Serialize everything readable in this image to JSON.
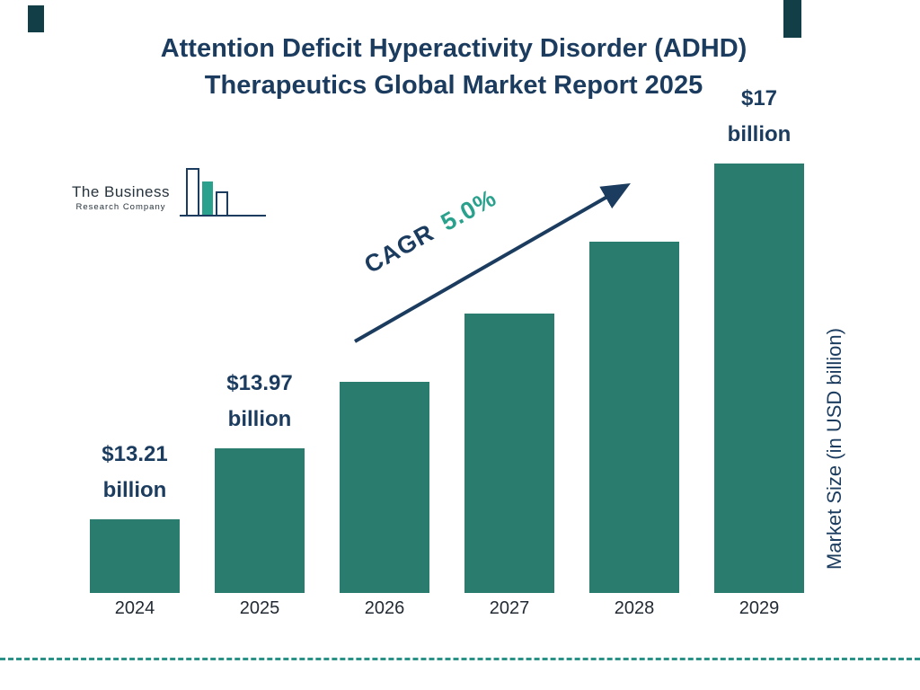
{
  "title": {
    "line1": "Attention Deficit Hyperactivity Disorder (ADHD)",
    "line2": "Therapeutics Global Market Report 2025"
  },
  "logo": {
    "name_line1": "The Business",
    "name_line2": "Research Company"
  },
  "chart_data": {
    "type": "bar",
    "title": "Attention Deficit Hyperactivity Disorder (ADHD) Therapeutics Global Market Report 2025",
    "categories": [
      "2024",
      "2025",
      "2026",
      "2027",
      "2028",
      "2029"
    ],
    "values": [
      13.21,
      13.97,
      14.67,
      15.4,
      16.17,
      17.0
    ],
    "unit": "USD billion",
    "xlabel": "",
    "ylabel": "Market Size (in USD billion)",
    "ylim": [
      12.4,
      17.2
    ],
    "grid": false,
    "legend": false,
    "value_labels": [
      {
        "index": 0,
        "line1": "$13.21",
        "line2": "billion"
      },
      {
        "index": 1,
        "line1": "$13.97",
        "line2": "billion"
      },
      {
        "index": 5,
        "line1": "$17",
        "line2": "billion"
      }
    ],
    "annotation": {
      "label": "CAGR",
      "value": "5.0%"
    }
  },
  "theme": {
    "bar_color": "#2a7d6e",
    "navy": "#1b3c5f",
    "accent_green": "#2aa18d",
    "dash_line": "#2a9287",
    "corner_accent": "#123f47"
  }
}
